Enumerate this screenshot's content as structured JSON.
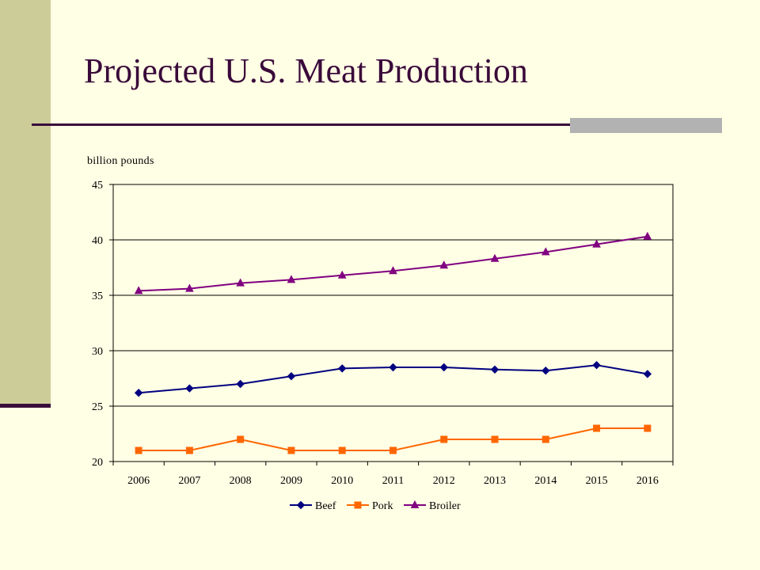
{
  "slide": {
    "title": "Projected U.S. Meat Production"
  },
  "colors": {
    "background": "#FFFFE5",
    "side_bar": "#CCCC99",
    "title_text": "#3A0A3A",
    "rule": "#3A0A3A",
    "rule_accent": "#B2B2B2"
  },
  "chart_data": {
    "type": "line",
    "title": "",
    "ylabel": "billion pounds",
    "xlabel": "",
    "categories": [
      "2006",
      "2007",
      "2008",
      "2009",
      "2010",
      "2011",
      "2012",
      "2013",
      "2014",
      "2015",
      "2016"
    ],
    "ylim": [
      20,
      45
    ],
    "yticks": [
      20,
      25,
      30,
      35,
      40,
      45
    ],
    "grid": true,
    "legend": "bottom",
    "series": [
      {
        "name": "Beef",
        "color": "#000080",
        "marker": "diamond",
        "values": [
          26.2,
          26.6,
          27.0,
          27.7,
          28.4,
          28.5,
          28.5,
          28.3,
          28.2,
          28.7,
          27.9
        ]
      },
      {
        "name": "Pork",
        "color": "#FF6600",
        "marker": "square",
        "values": [
          21.0,
          21.0,
          22.0,
          21.0,
          21.0,
          21.0,
          22.0,
          22.0,
          22.0,
          23.0,
          23.0
        ]
      },
      {
        "name": "Broiler",
        "color": "#800080",
        "marker": "triangle",
        "values": [
          35.4,
          35.6,
          36.1,
          36.4,
          36.8,
          37.2,
          37.7,
          38.3,
          38.9,
          39.6,
          40.3
        ]
      }
    ]
  }
}
